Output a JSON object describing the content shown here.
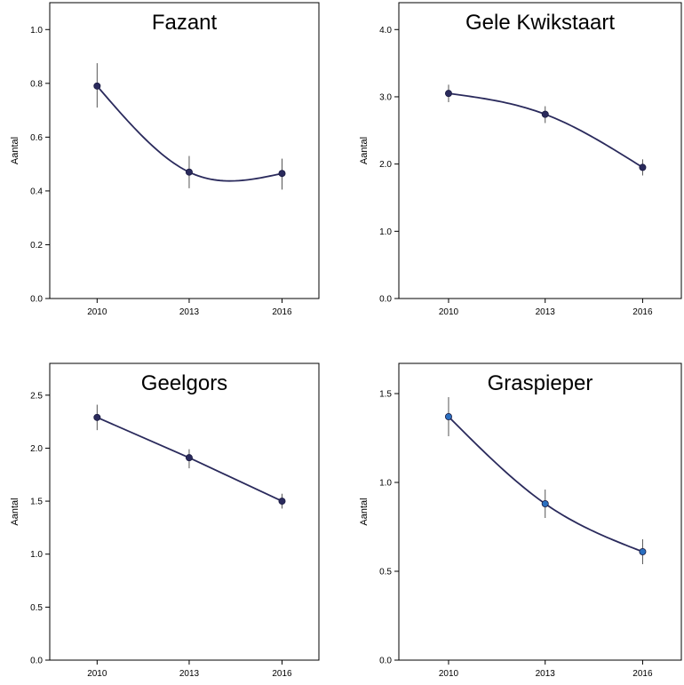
{
  "chart_data": [
    {
      "type": "line",
      "title": "Fazant",
      "ylabel": "Aantal",
      "x": [
        "2010",
        "2013",
        "2016"
      ],
      "values": [
        0.79,
        0.47,
        0.465
      ],
      "error_low": [
        0.71,
        0.41,
        0.405
      ],
      "error_high": [
        0.875,
        0.53,
        0.52
      ],
      "ylim": [
        0.0,
        1.1
      ],
      "yticks": [
        "0.0",
        "0.2",
        "0.4",
        "0.6",
        "0.8",
        "1.0"
      ],
      "line_color": "#2a2a5c",
      "marker_color": "#2a2a5c",
      "grid": false
    },
    {
      "type": "line",
      "title": "Gele Kwikstaart",
      "ylabel": "Aantal",
      "x": [
        "2010",
        "2013",
        "2016"
      ],
      "values": [
        3.05,
        2.74,
        1.95
      ],
      "error_low": [
        2.92,
        2.61,
        1.83
      ],
      "error_high": [
        3.18,
        2.86,
        2.07
      ],
      "ylim": [
        0.0,
        4.4
      ],
      "yticks": [
        "0.0",
        "1.0",
        "2.0",
        "3.0",
        "4.0"
      ],
      "line_color": "#2a2a5c",
      "marker_color": "#2a2a5c",
      "grid": false
    },
    {
      "type": "line",
      "title": "Geelgors",
      "ylabel": "Aantal",
      "x": [
        "2010",
        "2013",
        "2016"
      ],
      "values": [
        2.29,
        1.91,
        1.5
      ],
      "error_low": [
        2.17,
        1.81,
        1.43
      ],
      "error_high": [
        2.41,
        1.99,
        1.57
      ],
      "ylim": [
        0.0,
        2.8
      ],
      "yticks": [
        "0.0",
        "0.5",
        "1.0",
        "1.5",
        "2.0",
        "2.5"
      ],
      "line_color": "#2a2a5c",
      "marker_color": "#2a2a5c",
      "grid": false
    },
    {
      "type": "line",
      "title": "Graspieper",
      "ylabel": "Aantal",
      "x": [
        "2010",
        "2013",
        "2016"
      ],
      "values": [
        1.37,
        0.88,
        0.61
      ],
      "error_low": [
        1.26,
        0.8,
        0.54
      ],
      "error_high": [
        1.48,
        0.96,
        0.68
      ],
      "ylim": [
        0.0,
        1.67
      ],
      "yticks": [
        "0.0",
        "0.5",
        "1.0",
        "1.5"
      ],
      "line_color": "#2a2a5c",
      "marker_color": "#2a6fc0",
      "grid": false
    }
  ]
}
